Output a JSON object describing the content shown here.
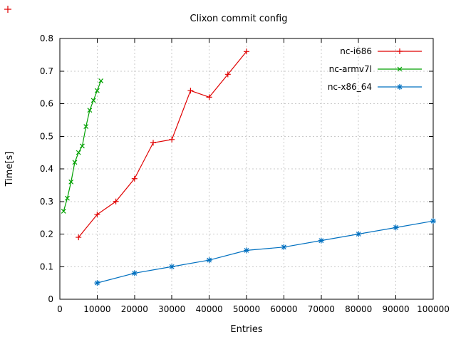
{
  "decorations": {
    "top_left_marker": "red-plus-icon",
    "marker_color": "#e00000"
  },
  "chart_data": {
    "type": "line",
    "title": "Clixon commit config",
    "xlabel": "Entries",
    "ylabel": "Time[s]",
    "xlim": [
      0,
      100000
    ],
    "ylim": [
      0,
      0.8
    ],
    "grid": true,
    "legend_position": "top-right",
    "xticks": [
      0,
      10000,
      20000,
      30000,
      40000,
      50000,
      60000,
      70000,
      80000,
      90000,
      100000
    ],
    "xtick_labels": [
      "0",
      "10000",
      "20000",
      "30000",
      "40000",
      "50000",
      "60000",
      "70000",
      "80000",
      "90000",
      "100000"
    ],
    "yticks": [
      0,
      0.1,
      0.2,
      0.3,
      0.4,
      0.5,
      0.6,
      0.7,
      0.8
    ],
    "ytick_labels": [
      "0",
      "0.1",
      "0.2",
      "0.3",
      "0.4",
      "0.5",
      "0.6",
      "0.7",
      "0.8"
    ],
    "series": [
      {
        "name": "nc-i686",
        "color": "#e00000",
        "marker": "plus",
        "x": [
          5000,
          10000,
          15000,
          20000,
          25000,
          30000,
          35000,
          40000,
          45000,
          50000
        ],
        "y": [
          0.19,
          0.26,
          0.3,
          0.37,
          0.48,
          0.49,
          0.64,
          0.62,
          0.69,
          0.76
        ]
      },
      {
        "name": "nc-armv7l",
        "color": "#00a000",
        "marker": "cross",
        "x": [
          1000,
          2000,
          3000,
          4000,
          5000,
          6000,
          7000,
          8000,
          9000,
          10000,
          11000
        ],
        "y": [
          0.27,
          0.31,
          0.36,
          0.42,
          0.45,
          0.47,
          0.53,
          0.58,
          0.61,
          0.64,
          0.67
        ]
      },
      {
        "name": "nc-x86_64",
        "color": "#0070c0",
        "marker": "asterisk",
        "x": [
          10000,
          20000,
          30000,
          40000,
          50000,
          60000,
          70000,
          80000,
          90000,
          100000
        ],
        "y": [
          0.05,
          0.08,
          0.1,
          0.12,
          0.15,
          0.16,
          0.18,
          0.2,
          0.22,
          0.24
        ]
      }
    ]
  }
}
